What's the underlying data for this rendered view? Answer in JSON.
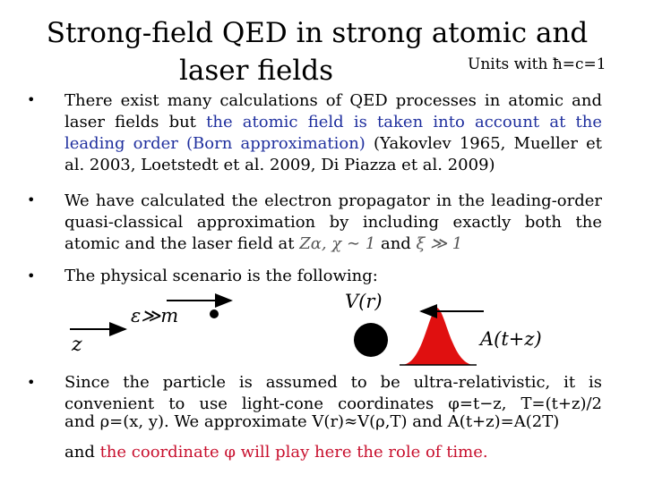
{
  "title": {
    "line1": "Strong-field QED in strong atomic and",
    "line2": "laser fields"
  },
  "units": "Units with ħ=c=1",
  "bullets": [
    {
      "text_a": "There exist many calculations of QED processes in atomic and laser fields but ",
      "text_blue": "the atomic field is taken into account at the leading order (Born approximation)",
      "text_b": " (Yakovlev 1965, Mueller et al. 2003, Loetstedt et al. 2009, Di Piazza et al. 2009)"
    },
    {
      "text_a": "We have calculated the electron propagator in the leading-order quasi-classical approximation by including exactly both the atomic and the laser field at ",
      "cond1": "Zα, χ ∼ 1",
      "and": " and ",
      "cond2": "ξ ≫ 1"
    },
    {
      "text": "The physical scenario is the following:"
    },
    {
      "line1": "Since the particle is assumed to be ultra-relativistic, it is",
      "line2": "convenient to use light-cone coordinates φ=t−z, T=(t+z)/2",
      "line3": "and ρ=(x, y). We approximate V(r)≈V(ρ,T) and A(t+z)=A(2T)",
      "line4_a": "and ",
      "line4_red": "the coordinate φ will play here the role of time."
    }
  ],
  "diagram": {
    "epsilon_label": "ε≫m",
    "z_label": "z",
    "V_label": "V(r)",
    "A_label": "A(t+z)"
  }
}
